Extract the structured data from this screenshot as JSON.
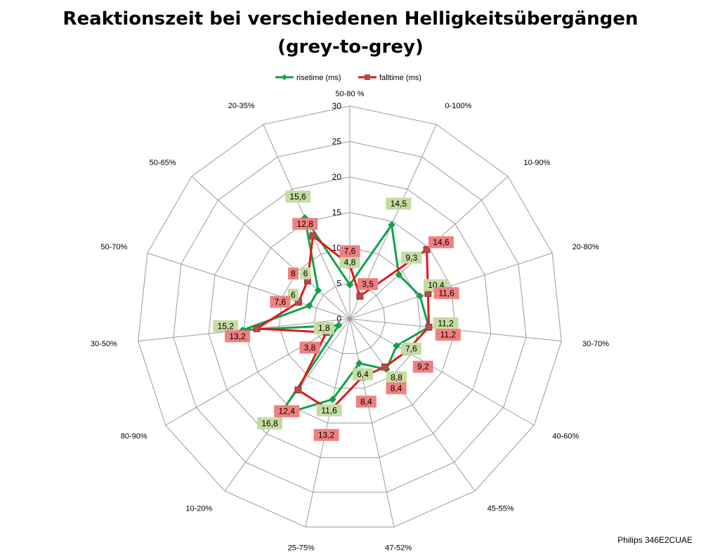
{
  "chart_data": {
    "type": "radar",
    "title_line1": "Reaktionszeit bei verschiedenen Helligkeitsübergängen",
    "title_line2": "(grey-to-grey)",
    "categories": [
      "50-80 %",
      "0-100%",
      "10-90%",
      "20-80%",
      "30-70%",
      "40-60%",
      "45-55%",
      "47-52%",
      "25-75%",
      "10-20%",
      "80-90%",
      "30-50%",
      "50-70%",
      "50-65%",
      "20-35%"
    ],
    "r_min": 0,
    "r_max": 30,
    "r_ticks": [
      0,
      5,
      10,
      15,
      20,
      25,
      30
    ],
    "series": [
      {
        "name": "risetime (ms)",
        "color": "#12a14a",
        "marker": "diamond",
        "label_bg": "#c4dca0",
        "values": [
          4.8,
          14.5,
          9.3,
          10.4,
          11.2,
          7.6,
          8.8,
          6.4,
          11.6,
          16.8,
          1.8,
          15.2,
          6,
          6,
          15.6
        ],
        "labels": [
          "4,8",
          "14,5",
          "9,3",
          "10,4",
          "11,2",
          "7,6",
          "8,8",
          "6,4",
          "11,6",
          "16,8",
          "1,8",
          "15,2",
          "6",
          "6",
          "15,6"
        ]
      },
      {
        "name": "falltime (ms)",
        "color": "#dd1a1a",
        "marker": "square",
        "label_bg": "#f08080",
        "values": [
          7.6,
          3.5,
          14.6,
          11.6,
          11.2,
          9.2,
          8.4,
          8.4,
          13.2,
          12.4,
          3.8,
          13.2,
          7.6,
          8,
          12.8
        ],
        "labels": [
          "7,6",
          "3,5",
          "14,6",
          "11,6",
          "11,2",
          "9,2",
          "8,4",
          "8,4",
          "13,2",
          "12,4",
          "3,8",
          "13,2",
          "7,6",
          "8",
          "12,8"
        ]
      }
    ],
    "legend_position": "top-center",
    "grid": true
  },
  "caption": "Philips 346E2CUAE"
}
